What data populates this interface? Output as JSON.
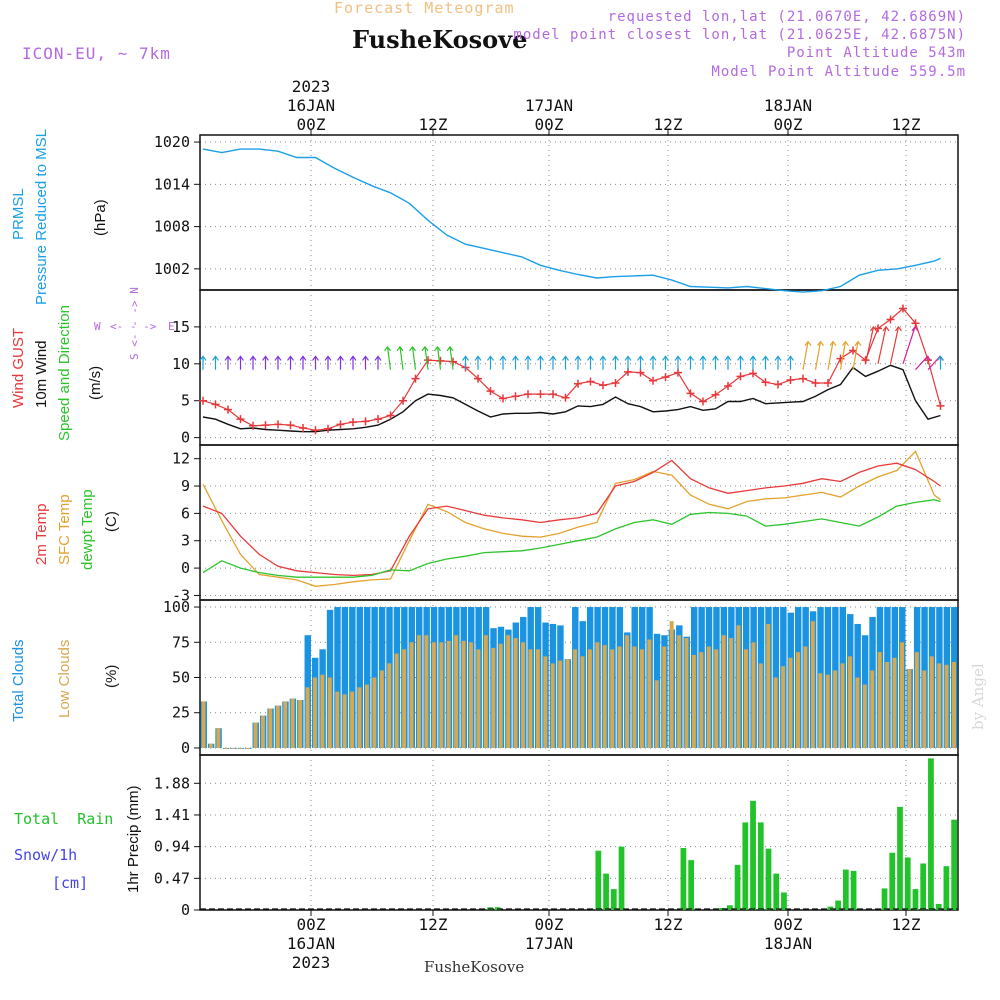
{
  "header": {
    "title": "Forecast Meteogram",
    "station": "FusheKosove",
    "model": "ICON-EU, ~ 7km",
    "requested": "requested lon,lat (21.0670E, 42.6869N)",
    "closest": "model point closest lon,lat (21.0625E, 42.6875N)",
    "altitude": "Point Altitude 543m",
    "model_altitude": "Model Point Altitude 559.5m"
  },
  "footer": {
    "station": "FusheKosove"
  },
  "watermark": "by Angel",
  "time_axis": {
    "top_labels": [
      {
        "lines": [
          "2023",
          "16JAN",
          "00Z"
        ]
      },
      {
        "lines": [
          "12Z"
        ]
      },
      {
        "lines": [
          "17JAN",
          "00Z"
        ]
      },
      {
        "lines": [
          "12Z"
        ]
      },
      {
        "lines": [
          "18JAN",
          "00Z"
        ]
      },
      {
        "lines": [
          "12Z"
        ]
      }
    ],
    "bottom_labels": [
      {
        "lines": [
          "00Z",
          "16JAN",
          "2023"
        ]
      },
      {
        "lines": [
          "12Z"
        ]
      },
      {
        "lines": [
          "00Z",
          "17JAN"
        ]
      },
      {
        "lines": [
          "12Z"
        ]
      },
      {
        "lines": [
          "00Z",
          "18JAN"
        ]
      },
      {
        "lines": [
          "12Z"
        ]
      }
    ]
  },
  "panel_labels": {
    "pressure": {
      "lines": [
        [
          "PRMSL"
        ],
        [
          "Pressure Reduced to MSL"
        ],
        [
          "(hPa)"
        ]
      ]
    },
    "wind": {
      "lines": [
        [
          "Wind GUST"
        ],
        [
          "10m Wind"
        ],
        [
          "Speed and Direction"
        ],
        [
          "(m/s)"
        ]
      ],
      "compass": "S <- - -> N",
      "compass_w": "W",
      "compass_e": "E"
    },
    "temp": {
      "lines": [
        [
          "2m Temp"
        ],
        [
          "SFC Temp"
        ],
        [
          "dewpt Temp"
        ],
        [
          "(C)"
        ]
      ]
    },
    "cloud": {
      "lines": [
        [
          "Total Clouds"
        ],
        [
          "Low Clouds"
        ],
        [
          "(%)"
        ]
      ]
    },
    "precip": {
      "side": [
        "Total  Rain",
        "Snow/1h",
        "[cm]"
      ],
      "axis": "1hr Precip (mm)"
    }
  },
  "colors": {
    "pressure": "#1a9fe8",
    "gust": "#e8373a",
    "wind10m": "#111111",
    "t2m": "#e83a3a",
    "tsfc": "#e4a22d",
    "dewpt": "#2cc42c",
    "total_cloud": "#1a93e0",
    "low_cloud": "#d6a851",
    "rain": "#22c22a",
    "snow": "#4444ee",
    "label_purple": "#b36ae0",
    "title_orange": "#f0c080"
  },
  "chart_data": [
    {
      "type": "line",
      "name": "pressure",
      "x_unit": "forecast hours since 15JAN 15Z",
      "ylim": [
        999,
        1021
      ],
      "yticks": [
        1002,
        1008,
        1014,
        1020
      ],
      "series": [
        {
          "name": "PRMSL",
          "x": [
            0,
            3,
            6,
            9,
            12,
            15,
            18,
            21,
            24,
            27,
            30,
            33,
            36,
            39,
            42,
            45,
            48,
            51,
            54,
            57,
            60,
            63,
            66,
            69,
            72,
            75,
            78,
            81,
            84,
            87,
            90,
            93,
            96,
            99,
            102,
            105,
            108,
            111,
            114,
            117,
            118
          ],
          "values": [
            1019,
            1018.5,
            1019,
            1019,
            1018.7,
            1017.8,
            1017.8,
            1016.3,
            1015,
            1013.8,
            1012.8,
            1011.3,
            1008.9,
            1006.8,
            1005.5,
            1004.9,
            1004.3,
            1003.7,
            1002.5,
            1001.8,
            1001.2,
            1000.7,
            1000.9,
            1001,
            1001.1,
            1000.4,
            999.5,
            999.4,
            999.3,
            999.5,
            999.2,
            998.9,
            998.7,
            998.9,
            999.5,
            1001.1,
            1001.8,
            1002,
            1002.5,
            1003.1,
            1003.5
          ]
        }
      ]
    },
    {
      "type": "line",
      "name": "wind",
      "ylim": [
        -1,
        20
      ],
      "yticks": [
        0,
        5,
        10,
        15
      ],
      "series": [
        {
          "name": "Wind GUST",
          "x": [
            0,
            2,
            4,
            6,
            8,
            10,
            12,
            14,
            16,
            18,
            20,
            22,
            24,
            26,
            28,
            30,
            32,
            34,
            36,
            38,
            40,
            42,
            44,
            46,
            48,
            50,
            52,
            54,
            56,
            58,
            60,
            62,
            64,
            66,
            68,
            70,
            72,
            74,
            76,
            78,
            80,
            82,
            84,
            86,
            88,
            90,
            92,
            94,
            96,
            98,
            100,
            102,
            104,
            106,
            108,
            110,
            112,
            114,
            116,
            118
          ],
          "values": [
            5,
            4.5,
            3.8,
            2.5,
            1.6,
            1.7,
            1.8,
            1.7,
            1.3,
            1.0,
            1.2,
            1.8,
            2.1,
            2.2,
            2.5,
            3.0,
            5.0,
            8.0,
            10.5,
            10.4,
            10.3,
            9.5,
            8.0,
            6.3,
            5.3,
            5.6,
            5.9,
            5.9,
            5.9,
            5.4,
            7.3,
            7.6,
            7.1,
            7.4,
            8.9,
            8.8,
            7.7,
            8.2,
            8.8,
            6.0,
            4.9,
            5.8,
            7.0,
            8.3,
            8.7,
            7.5,
            7.2,
            7.8,
            8.0,
            7.4,
            7.4,
            10.7,
            11.8,
            10.5,
            14.8,
            16.0,
            17.5,
            15.5,
            10.5,
            4.3
          ]
        },
        {
          "name": "10m Wind",
          "x": [
            0,
            2,
            4,
            6,
            8,
            10,
            12,
            14,
            16,
            18,
            20,
            22,
            24,
            26,
            28,
            30,
            32,
            34,
            36,
            38,
            40,
            42,
            44,
            46,
            48,
            50,
            52,
            54,
            56,
            58,
            60,
            62,
            64,
            66,
            68,
            70,
            72,
            74,
            76,
            78,
            80,
            82,
            84,
            86,
            88,
            90,
            92,
            94,
            96,
            98,
            100,
            102,
            104,
            106,
            108,
            110,
            112,
            114,
            116,
            118
          ],
          "values": [
            2.8,
            2.5,
            1.8,
            1.2,
            1.3,
            1.1,
            1.0,
            0.9,
            0.8,
            0.8,
            1.0,
            1.1,
            1.2,
            1.4,
            1.7,
            2.5,
            3.5,
            5.0,
            5.9,
            5.7,
            5.4,
            4.5,
            3.6,
            2.8,
            3.2,
            3.3,
            3.3,
            3.4,
            3.2,
            3.5,
            4.3,
            4.2,
            4.5,
            5.5,
            4.6,
            4.2,
            3.5,
            3.6,
            3.8,
            4.2,
            3.7,
            3.9,
            4.9,
            4.9,
            5.3,
            4.6,
            4.7,
            4.8,
            4.9,
            5.6,
            6.5,
            7.2,
            9.5,
            8.3,
            9.0,
            9.8,
            9.2,
            5.0,
            2.5,
            3.0
          ]
        }
      ]
    },
    {
      "type": "line",
      "name": "temperature",
      "ylim": [
        -3.5,
        13.5
      ],
      "yticks": [
        -3,
        0,
        3,
        6,
        9,
        12
      ],
      "series": [
        {
          "name": "2m Temp",
          "x": [
            0,
            3,
            6,
            9,
            12,
            15,
            18,
            21,
            24,
            27,
            30,
            33,
            36,
            39,
            42,
            45,
            48,
            51,
            54,
            57,
            60,
            63,
            66,
            69,
            72,
            75,
            78,
            81,
            84,
            87,
            90,
            93,
            96,
            99,
            102,
            105,
            108,
            111,
            114,
            117,
            118
          ],
          "values": [
            6.8,
            6,
            3.5,
            1.5,
            0.2,
            -0.3,
            -0.5,
            -0.7,
            -0.8,
            -0.7,
            -0.3,
            3.5,
            6.5,
            6.8,
            6.3,
            5.8,
            5.5,
            5.3,
            5.0,
            5.3,
            5.5,
            6.0,
            9.0,
            9.5,
            10.5,
            11.8,
            9.8,
            8.8,
            8.2,
            8.5,
            8.8,
            9.0,
            9.3,
            9.8,
            9.5,
            10.5,
            11.2,
            11.5,
            10.8,
            9.5,
            9.0
          ]
        },
        {
          "name": "SFC Temp",
          "x": [
            0,
            3,
            6,
            9,
            12,
            15,
            18,
            21,
            24,
            27,
            30,
            33,
            36,
            39,
            42,
            45,
            48,
            51,
            54,
            57,
            60,
            63,
            66,
            69,
            72,
            75,
            78,
            81,
            84,
            87,
            90,
            93,
            96,
            99,
            102,
            105,
            108,
            111,
            114,
            117,
            118
          ],
          "values": [
            9.2,
            5.2,
            1.5,
            -0.7,
            -1.0,
            -1.3,
            -2.0,
            -1.8,
            -1.5,
            -1.3,
            -1.2,
            3.0,
            7.0,
            6.2,
            5.0,
            4.3,
            3.8,
            3.5,
            3.4,
            3.8,
            4.5,
            5.0,
            9.3,
            9.7,
            10.6,
            10.2,
            8.0,
            7.0,
            6.5,
            7.3,
            7.6,
            7.7,
            8.0,
            8.3,
            7.8,
            9.0,
            10.0,
            10.7,
            12.8,
            8.0,
            7.5
          ]
        },
        {
          "name": "dewpt Temp",
          "x": [
            0,
            3,
            6,
            9,
            12,
            15,
            18,
            21,
            24,
            27,
            30,
            33,
            36,
            39,
            42,
            45,
            48,
            51,
            54,
            57,
            60,
            63,
            66,
            69,
            72,
            75,
            78,
            81,
            84,
            87,
            90,
            93,
            96,
            99,
            102,
            105,
            108,
            111,
            114,
            117,
            118
          ],
          "values": [
            -0.5,
            0.8,
            0.0,
            -0.5,
            -0.8,
            -1.0,
            -1.0,
            -1.0,
            -1.0,
            -0.8,
            -0.2,
            -0.3,
            0.5,
            1.0,
            1.3,
            1.7,
            1.8,
            1.9,
            2.2,
            2.6,
            3.0,
            3.4,
            4.3,
            5.0,
            5.3,
            4.8,
            5.9,
            6.1,
            6.0,
            5.7,
            4.6,
            4.8,
            5.1,
            5.4,
            5.0,
            4.6,
            5.6,
            6.8,
            7.2,
            7.5,
            7.3
          ]
        }
      ]
    },
    {
      "type": "bar",
      "name": "clouds",
      "ylim": [
        -5,
        105
      ],
      "yticks": [
        0,
        25,
        50,
        75,
        100
      ],
      "series": [
        {
          "name": "Total Clouds",
          "values": [
            33,
            3,
            14,
            0,
            0,
            0,
            0,
            18,
            23,
            28,
            30,
            33,
            35,
            34,
            80,
            64,
            70,
            98,
            100,
            100,
            100,
            100,
            100,
            100,
            100,
            100,
            100,
            100,
            100,
            100,
            100,
            100,
            100,
            100,
            100,
            100,
            100,
            100,
            100,
            85,
            86,
            84,
            89,
            93,
            100,
            100,
            89,
            88,
            87,
            63,
            100,
            90,
            100,
            100,
            100,
            100,
            100,
            82,
            100,
            100,
            100,
            81,
            80,
            84,
            87,
            79,
            100,
            100,
            100,
            100,
            100,
            100,
            100,
            100,
            100,
            100,
            100,
            100,
            100,
            96,
            100,
            100,
            97,
            100,
            100,
            100,
            100,
            95,
            88,
            80,
            93,
            100,
            100,
            100,
            100,
            56,
            100,
            100,
            100,
            100,
            100,
            100
          ]
        },
        {
          "name": "Low Clouds",
          "values": [
            33,
            3,
            14,
            0,
            0,
            0,
            0,
            18,
            23,
            28,
            30,
            33,
            35,
            34,
            43,
            50,
            52,
            50,
            40,
            38,
            40,
            43,
            45,
            50,
            55,
            60,
            67,
            70,
            75,
            80,
            80,
            75,
            75,
            76,
            80,
            76,
            75,
            70,
            80,
            71,
            74,
            80,
            78,
            75,
            70,
            70,
            65,
            60,
            62,
            63,
            70,
            65,
            70,
            75,
            73,
            70,
            72,
            80,
            72,
            70,
            77,
            48,
            72,
            90,
            80,
            78,
            66,
            68,
            72,
            70,
            80,
            78,
            87,
            70,
            75,
            60,
            88,
            50,
            58,
            64,
            68,
            72,
            90,
            53,
            52,
            55,
            60,
            65,
            50,
            45,
            55,
            68,
            61,
            64,
            75,
            56,
            68,
            55,
            65,
            60,
            59,
            61
          ]
        }
      ]
    },
    {
      "type": "bar",
      "name": "precip",
      "ylim": [
        0,
        2.3
      ],
      "yticks": [
        0,
        0.47,
        0.94,
        1.41,
        1.88
      ],
      "series": [
        {
          "name": "Total Rain",
          "values": [
            0,
            0,
            0,
            0,
            0,
            0,
            0,
            0,
            0,
            0,
            0,
            0,
            0,
            0,
            0,
            0,
            0,
            0,
            0,
            0,
            0,
            0,
            0,
            0,
            0,
            0,
            0,
            0,
            0,
            0,
            0,
            0,
            0,
            0,
            0,
            0,
            0,
            0.04,
            0.04,
            0,
            0,
            0,
            0,
            0,
            0,
            0,
            0,
            0,
            0,
            0,
            0,
            0.88,
            0.54,
            0.31,
            0.94,
            0,
            0,
            0,
            0,
            0,
            0,
            0,
            0.92,
            0.74,
            0,
            0,
            0,
            0.03,
            0.07,
            0.67,
            1.3,
            1.62,
            1.3,
            0.91,
            0.54,
            0.26,
            0,
            0,
            0,
            0,
            0,
            0.05,
            0.14,
            0.6,
            0.58,
            0,
            0,
            0,
            0.32,
            0.85,
            1.53,
            0.78,
            0.31,
            0.69,
            2.25,
            0.09,
            0.65,
            1.34
          ]
        },
        {
          "name": "Snow",
          "values": []
        }
      ]
    }
  ]
}
